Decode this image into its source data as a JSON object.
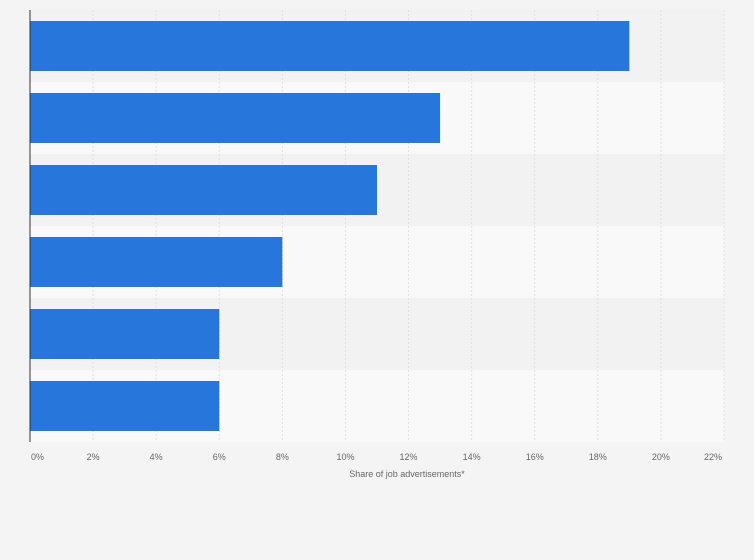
{
  "chart_data": {
    "type": "bar",
    "orientation": "horizontal",
    "categories": [
      "",
      "",
      "",
      "",
      "",
      ""
    ],
    "values": [
      19,
      13,
      11,
      8,
      6,
      6
    ],
    "xlabel": "Share of job advertisements*",
    "ylabel": "",
    "xlim": [
      0,
      22
    ],
    "x_ticks": [
      "0%",
      "2%",
      "4%",
      "6%",
      "8%",
      "10%",
      "12%",
      "14%",
      "16%",
      "18%",
      "20%",
      "22%"
    ],
    "grid": true,
    "legend": "none",
    "colors": {
      "bar": "#2776db",
      "background": "#f4f4f4",
      "band_light": "#f9f9f9",
      "band_dark": "#f2f2f2",
      "grid": "#e0e0e0",
      "axis": "#333333",
      "text": "#666666"
    }
  }
}
